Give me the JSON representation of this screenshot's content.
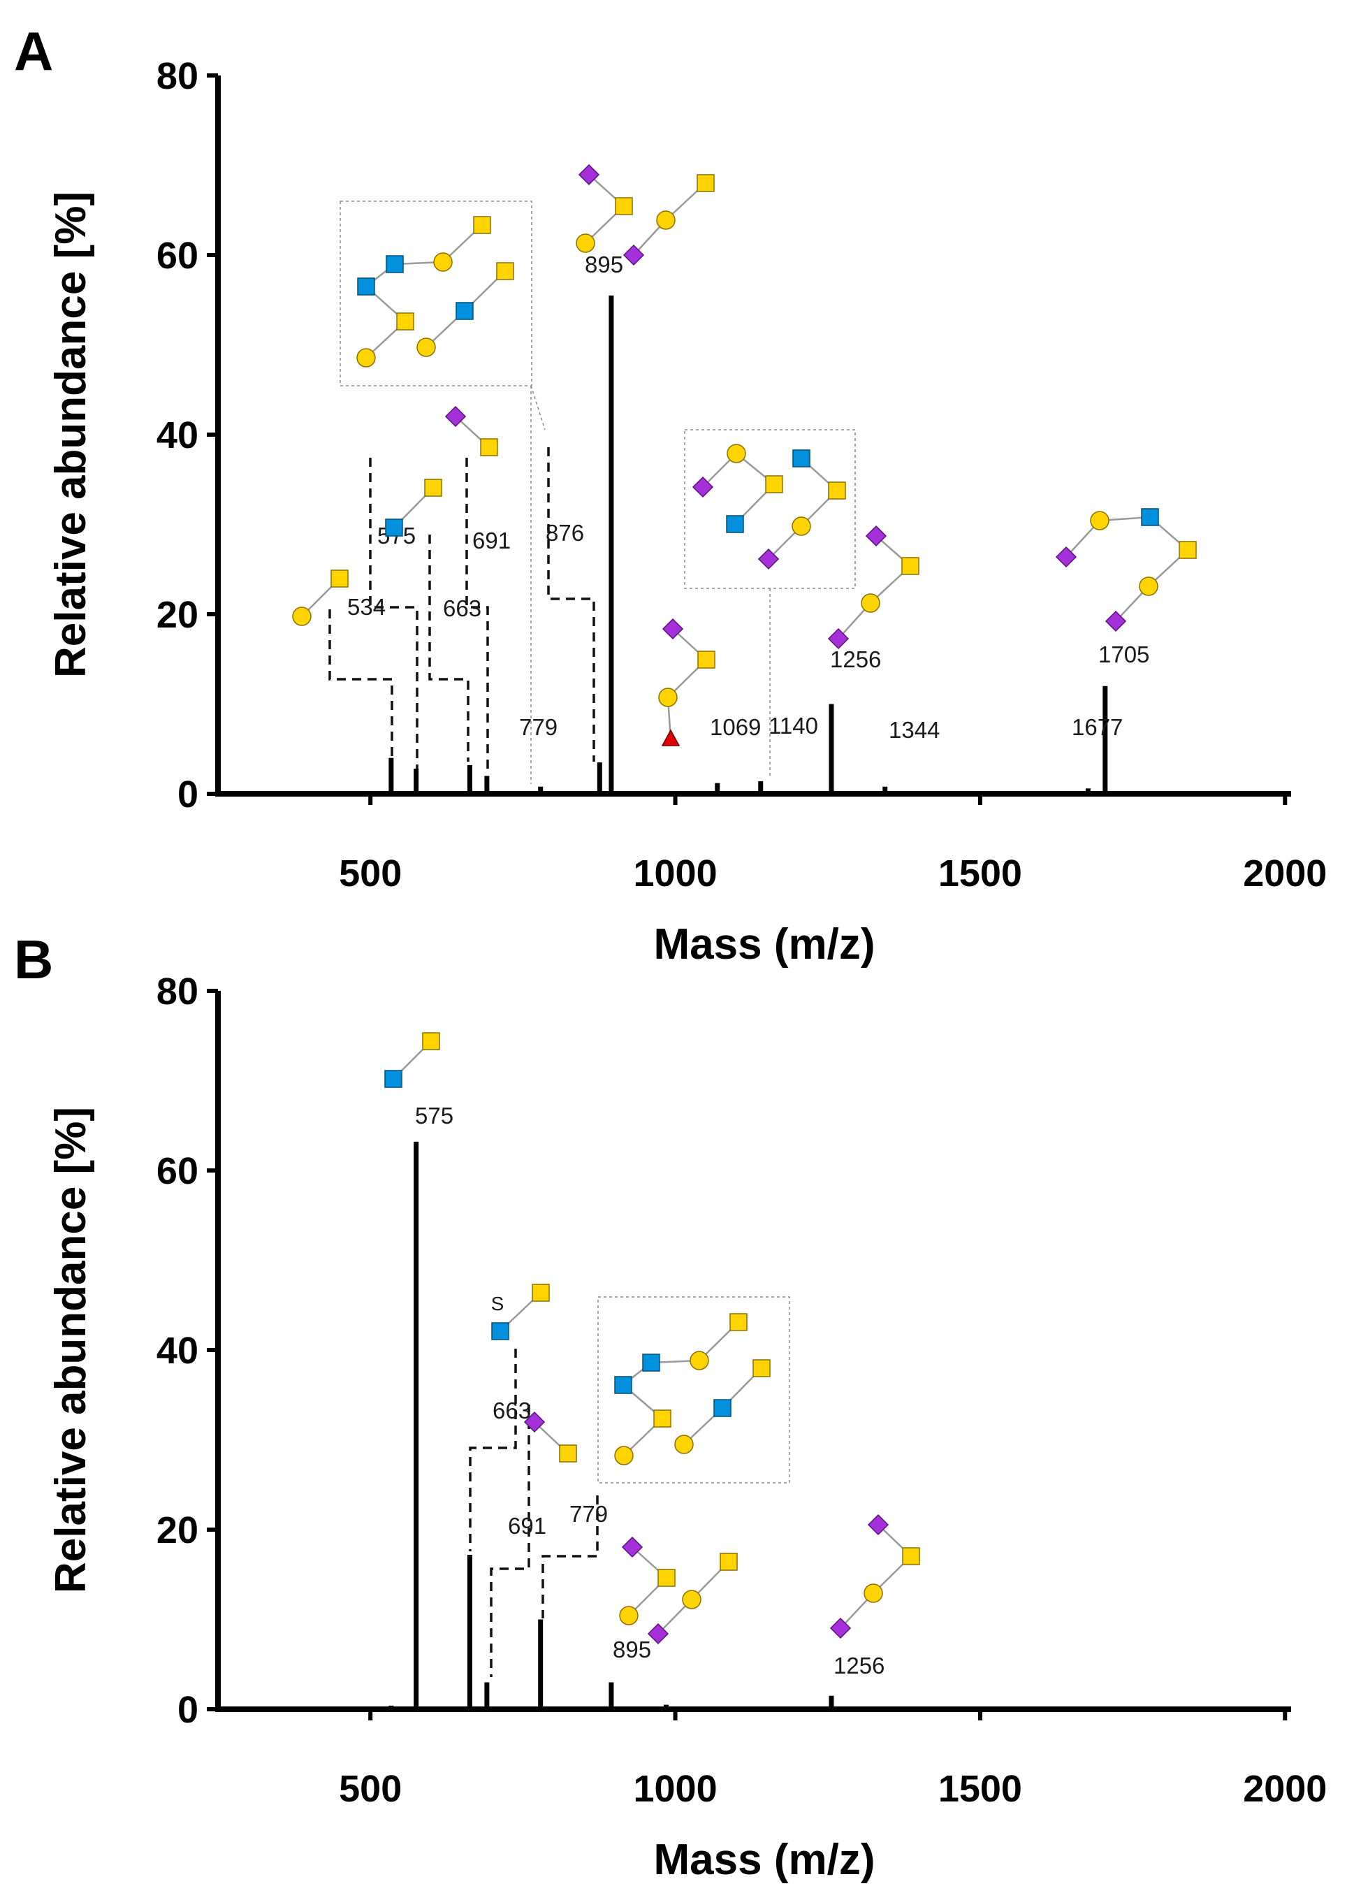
{
  "chart_data": [
    {
      "panel": "A",
      "type": "bar",
      "xlabel": "Mass (m/z)",
      "ylabel": "Relative abundance [%]",
      "xlim": [
        250,
        2010
      ],
      "ylim": [
        0,
        80
      ],
      "xticks": [
        500,
        1000,
        1500,
        2000
      ],
      "yticks": [
        0,
        20,
        40,
        60,
        80
      ],
      "peaks": [
        {
          "mz": 534,
          "value": 4.0,
          "label": "534"
        },
        {
          "mz": 575,
          "value": 2.8,
          "label": "575"
        },
        {
          "mz": 663,
          "value": 3.2,
          "label": "663"
        },
        {
          "mz": 691,
          "value": 2.0,
          "label": "691"
        },
        {
          "mz": 779,
          "value": 0.8,
          "label": "779"
        },
        {
          "mz": 876,
          "value": 3.5,
          "label": "876"
        },
        {
          "mz": 895,
          "value": 55.5,
          "label": "895"
        },
        {
          "mz": 1069,
          "value": 1.2,
          "label": "1069"
        },
        {
          "mz": 1140,
          "value": 1.4,
          "label": "1140"
        },
        {
          "mz": 1256,
          "value": 10.0,
          "label": "1256"
        },
        {
          "mz": 1344,
          "value": 0.8,
          "label": "1344"
        },
        {
          "mz": 1677,
          "value": 0.6,
          "label": "1677"
        },
        {
          "mz": 1705,
          "value": 12.0,
          "label": "1705"
        }
      ]
    },
    {
      "panel": "B",
      "type": "bar",
      "xlabel": "Mass (m/z)",
      "ylabel": "Relative abundance [%]",
      "xlim": [
        250,
        2010
      ],
      "ylim": [
        0,
        80
      ],
      "xticks": [
        500,
        1000,
        1500,
        2000
      ],
      "yticks": [
        0,
        20,
        40,
        60,
        80
      ],
      "peaks": [
        {
          "mz": 534,
          "value": 0.4,
          "label": ""
        },
        {
          "mz": 575,
          "value": 63.2,
          "label": "575"
        },
        {
          "mz": 663,
          "value": 17.2,
          "label": "663"
        },
        {
          "mz": 691,
          "value": 3.0,
          "label": "691"
        },
        {
          "mz": 779,
          "value": 10.0,
          "label": "779"
        },
        {
          "mz": 895,
          "value": 3.0,
          "label": "895"
        },
        {
          "mz": 985,
          "value": 0.5,
          "label": ""
        },
        {
          "mz": 1256,
          "value": 1.5,
          "label": "1256"
        }
      ],
      "annotations": [
        "S"
      ]
    }
  ],
  "colors": {
    "galactose": "#FFD400",
    "galnac": "#FFD400",
    "glcnac": "#0090DD",
    "sialic": "#A530D9",
    "fucose": "#E00000",
    "bar": "#000000"
  }
}
